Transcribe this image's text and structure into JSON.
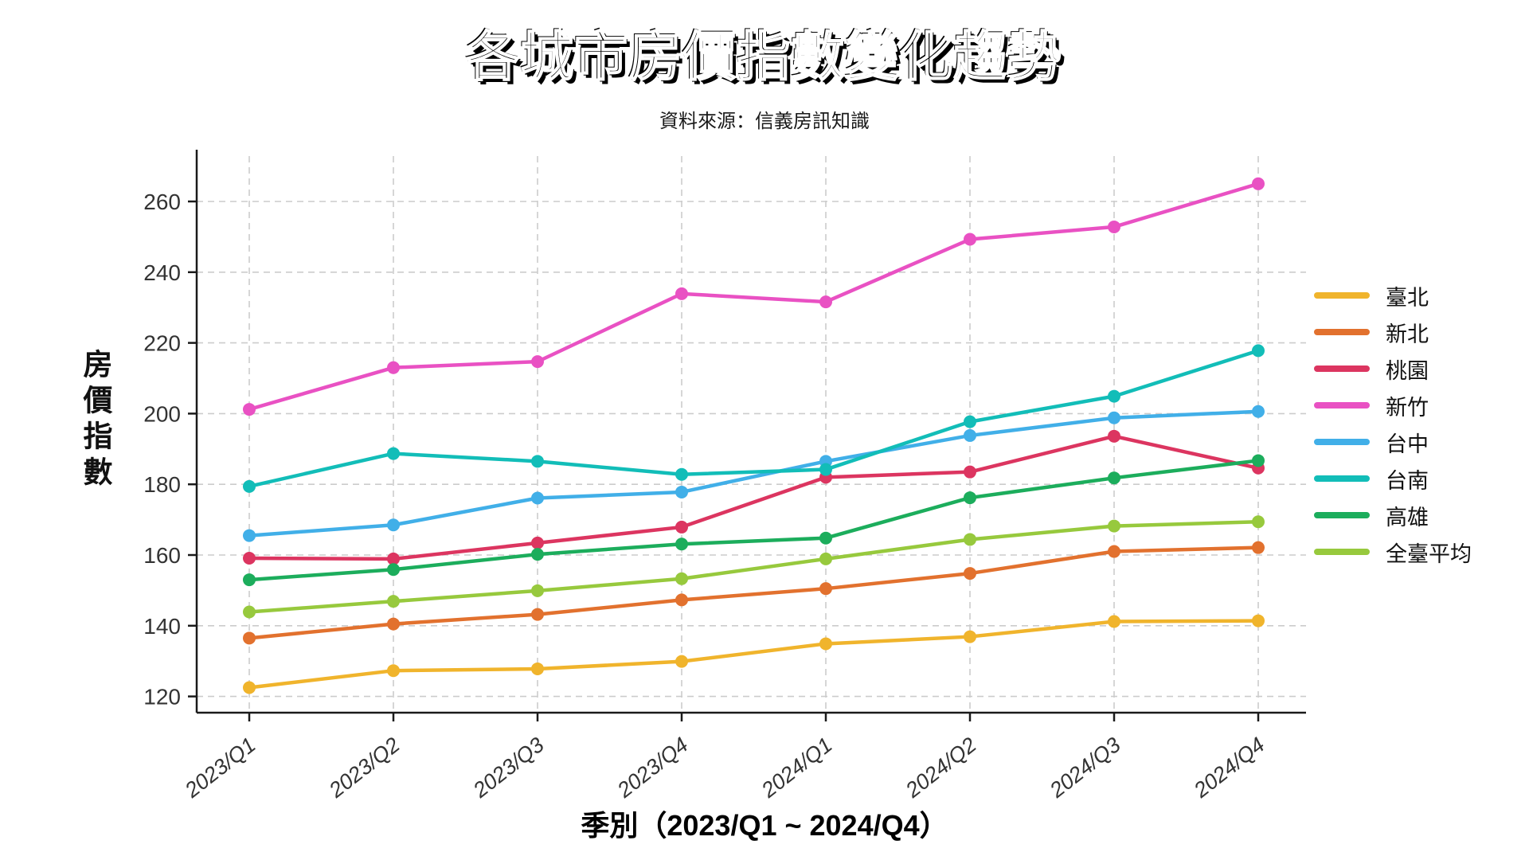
{
  "header": {
    "title": "各城市房價指數變化趨勢",
    "subtitle": "資料來源：信義房訊知識"
  },
  "axes": {
    "y_title": "房價指數",
    "x_title": "季別（2023/Q1 ~ 2024/Q4）",
    "y_ticks": [
      120,
      140,
      160,
      180,
      200,
      220,
      240,
      260
    ],
    "grid": true
  },
  "chart_data": {
    "type": "line",
    "title": "各城市房價指數變化趨勢",
    "subtitle": "資料來源：信義房訊知識",
    "xlabel": "季別（2023/Q1 ~ 2024/Q4）",
    "ylabel": "房價指數",
    "ylim": [
      115,
      272
    ],
    "grid": true,
    "legend_position": "right",
    "categories": [
      "2023/Q1",
      "2023/Q2",
      "2023/Q3",
      "2023/Q4",
      "2024/Q1",
      "2024/Q2",
      "2024/Q3",
      "2024/Q4"
    ],
    "series": [
      {
        "name": "臺北",
        "color": "#F0B42C",
        "values": [
          122.5,
          127.3,
          127.8,
          129.9,
          134.9,
          136.9,
          141.2,
          141.4
        ]
      },
      {
        "name": "新北",
        "color": "#E2712E",
        "values": [
          136.5,
          140.5,
          143.2,
          147.3,
          150.5,
          154.8,
          161.0,
          162.1
        ]
      },
      {
        "name": "桃園",
        "color": "#DC3560",
        "values": [
          159.1,
          158.9,
          163.4,
          167.9,
          182.0,
          183.5,
          193.6,
          184.6
        ]
      },
      {
        "name": "新竹",
        "color": "#E951C3",
        "values": [
          201.2,
          213.0,
          214.7,
          233.9,
          231.6,
          249.3,
          252.8,
          265.0
        ]
      },
      {
        "name": "台中",
        "color": "#41AFE8",
        "values": [
          165.5,
          168.5,
          176.1,
          177.8,
          186.5,
          193.8,
          198.8,
          200.6
        ]
      },
      {
        "name": "台南",
        "color": "#12BDB8",
        "values": [
          179.4,
          188.7,
          186.5,
          182.8,
          184.2,
          197.7,
          204.9,
          217.8
        ]
      },
      {
        "name": "高雄",
        "color": "#1CAD5C",
        "values": [
          153.0,
          155.9,
          160.2,
          163.1,
          164.8,
          176.2,
          181.8,
          186.7
        ]
      },
      {
        "name": "全臺平均",
        "color": "#97C93D",
        "values": [
          143.9,
          146.9,
          149.9,
          153.3,
          158.9,
          164.4,
          168.2,
          169.4
        ]
      }
    ]
  },
  "style": {
    "grid_color": "#cccccc",
    "spine_color": "#1a1a1a",
    "tick_label_color": "#333333"
  }
}
